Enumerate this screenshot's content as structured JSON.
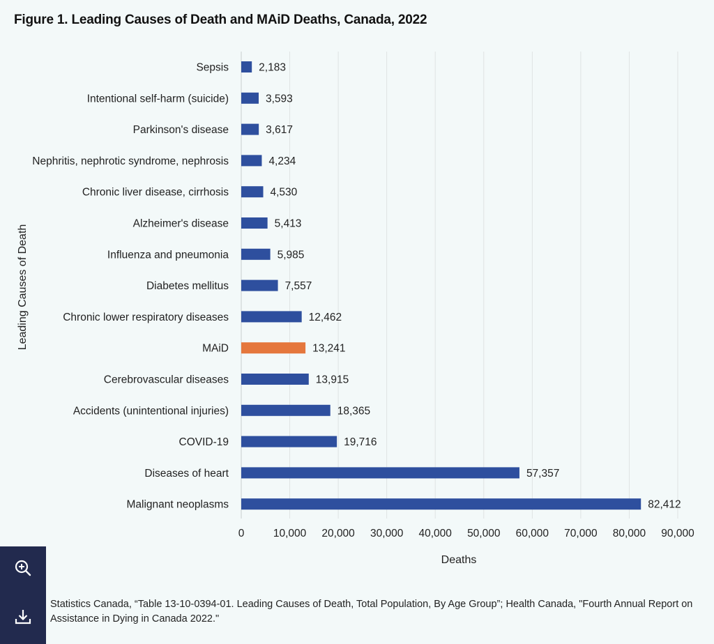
{
  "title": "Figure 1. Leading Causes of Death and MAiD Deaths, Canada, 2022",
  "chart_data": {
    "type": "bar",
    "orientation": "horizontal",
    "categories": [
      "Sepsis",
      "Intentional self-harm (suicide)",
      "Parkinson's disease",
      "Nephritis, nephrotic syndrome, nephrosis",
      "Chronic liver disease, cirrhosis",
      "Alzheimer's disease",
      "Influenza and pneumonia",
      "Diabetes mellitus",
      "Chronic lower respiratory diseases",
      "MAiD",
      "Cerebrovascular diseases",
      "Accidents (unintentional injuries)",
      "COVID-19",
      "Diseases of heart",
      "Malignant neoplasms"
    ],
    "values": [
      2183,
      3593,
      3617,
      4234,
      4530,
      5413,
      5985,
      7557,
      12462,
      13241,
      13915,
      18365,
      19716,
      57357,
      82412
    ],
    "value_labels": [
      "2,183",
      "3,593",
      "3,617",
      "4,234",
      "4,530",
      "5,413",
      "5,985",
      "7,557",
      "12,462",
      "13,241",
      "13,915",
      "18,365",
      "19,716",
      "57,357",
      "82,412"
    ],
    "highlight_category": "MAiD",
    "colors": {
      "default": "#2e4f9e",
      "highlight": "#e5773d",
      "grid": "#dfe3e3"
    },
    "xlabel": "Deaths",
    "ylabel": "Leading Causes of Death",
    "xlim": [
      0,
      90000
    ],
    "x_ticks": [
      0,
      10000,
      20000,
      30000,
      40000,
      50000,
      60000,
      70000,
      80000,
      90000
    ],
    "x_tick_labels": [
      "0",
      "10,000",
      "20,000",
      "30,000",
      "40,000",
      "50,000",
      "60,000",
      "70,000",
      "80,000",
      "90,000"
    ],
    "grid": "vertical"
  },
  "tools": {
    "zoom_icon": "zoom-in-icon",
    "download_icon": "download-icon"
  },
  "source": "Statistics Canada, “Table 13-10-0394-01. Leading Causes of Death, Total Population, By Age Group”; Health Canada, \"Fourth Annual Report on Assistance in Dying in Canada 2022.\""
}
